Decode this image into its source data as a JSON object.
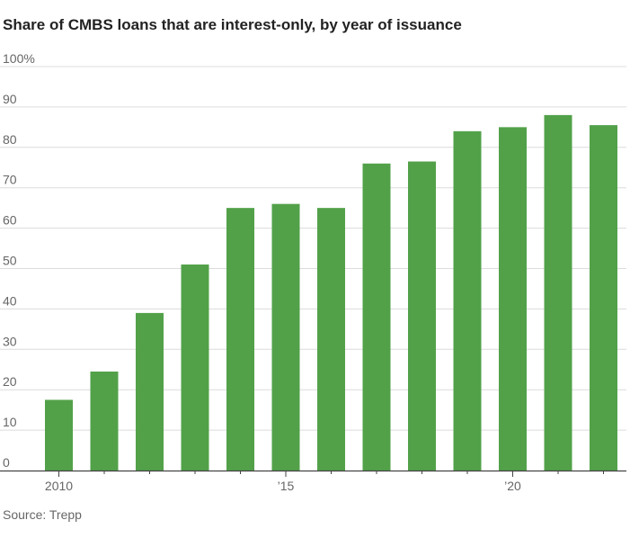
{
  "chart_data": {
    "type": "bar",
    "title": "Share of CMBS loans that are interest-only, by year of issuance",
    "xlabel": "",
    "ylabel": "",
    "categories": [
      "2010",
      "2011",
      "2012",
      "2013",
      "2014",
      "2015",
      "2016",
      "2017",
      "2018",
      "2019",
      "2020",
      "2021",
      "2022"
    ],
    "values": [
      17.5,
      24.5,
      39,
      51,
      65,
      66,
      65,
      76,
      76.5,
      84,
      85,
      88,
      85.5
    ],
    "ylim": [
      0,
      100
    ],
    "y_ticks": [
      "100%",
      "90",
      "80",
      "70",
      "60",
      "50",
      "40",
      "30",
      "20",
      "10",
      "0"
    ],
    "x_tick_labels": [
      {
        "category": "2010",
        "label": "2010"
      },
      {
        "category": "2015",
        "label": "’15"
      },
      {
        "category": "2020",
        "label": "’20"
      }
    ],
    "grid": true,
    "bar_color": "#52a149",
    "source": "Source: Trepp"
  }
}
